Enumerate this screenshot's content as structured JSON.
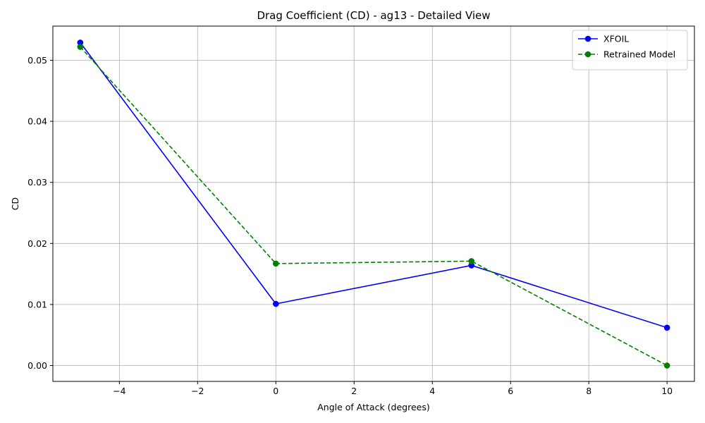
{
  "chart_data": {
    "type": "line",
    "title": "Drag Coefficient (CD) - ag13 - Detailed View",
    "xlabel": "Angle of Attack (degrees)",
    "ylabel": "CD",
    "xlim": [
      -5.7,
      10.7
    ],
    "ylim": [
      -0.0026,
      0.0556
    ],
    "x_ticks": [
      -4,
      -2,
      0,
      2,
      4,
      6,
      8,
      10
    ],
    "x_tick_labels": [
      "−4",
      "−2",
      "0",
      "2",
      "4",
      "6",
      "8",
      "10"
    ],
    "y_ticks": [
      0.0,
      0.01,
      0.02,
      0.03,
      0.04,
      0.05
    ],
    "y_tick_labels": [
      "0.00",
      "0.01",
      "0.02",
      "0.03",
      "0.04",
      "0.05"
    ],
    "grid": true,
    "legend_position": "top-right",
    "x": [
      -5,
      0,
      5,
      10
    ],
    "series": [
      {
        "name": "XFOIL",
        "values": [
          0.0529,
          0.0101,
          0.0164,
          0.0062
        ],
        "color": "#0000ff",
        "line_style": "solid",
        "marker": "circle"
      },
      {
        "name": "Retrained Model",
        "values": [
          0.0522,
          0.0167,
          0.0171,
          0.0
        ],
        "color": "#008000",
        "line_style": "dashed",
        "marker": "circle"
      }
    ]
  }
}
